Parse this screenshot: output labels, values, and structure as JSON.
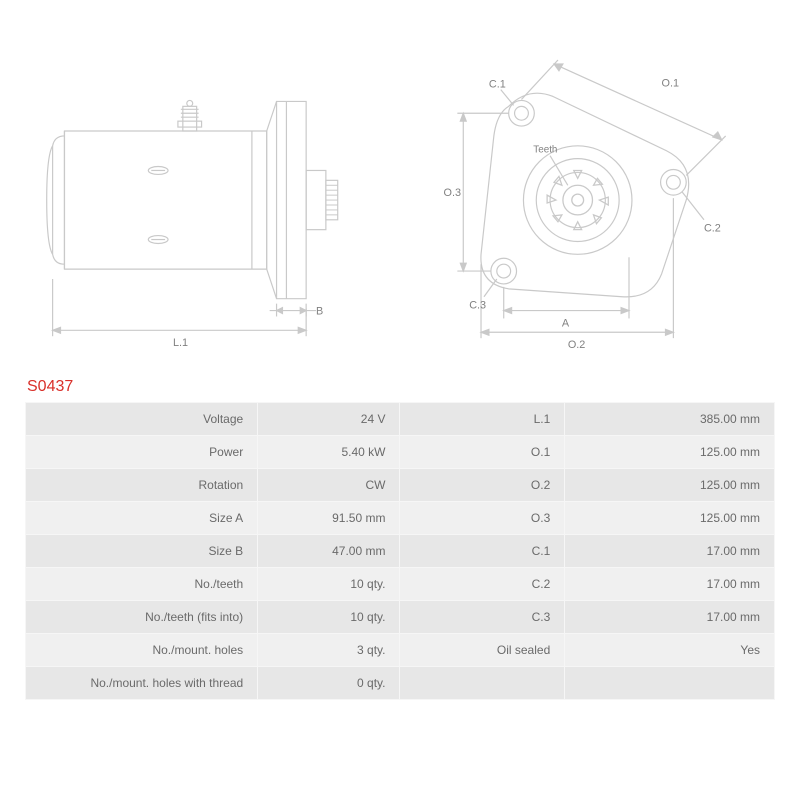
{
  "part_number": "S0437",
  "diagram": {
    "stroke_color": "#c9c9c9",
    "stroke_width": 1.2,
    "text_color": "#808080",
    "label_fontsize": 11,
    "side_view": {
      "labels": {
        "L1": "L.1",
        "B": "B"
      }
    },
    "front_view": {
      "labels": {
        "O1": "O.1",
        "O2": "O.2",
        "O3": "O.3",
        "C1": "C.1",
        "C2": "C.2",
        "C3": "C.3",
        "A": "A",
        "Teeth": "Teeth"
      }
    }
  },
  "specs": {
    "colors": {
      "row_odd_bg": "#e7e7e7",
      "row_even_bg": "#f0f0f0",
      "text": "#6a6a6a"
    },
    "rows": [
      {
        "l": "Voltage",
        "v": "24 V",
        "l2": "L.1",
        "v2": "385.00 mm"
      },
      {
        "l": "Power",
        "v": "5.40 kW",
        "l2": "O.1",
        "v2": "125.00 mm"
      },
      {
        "l": "Rotation",
        "v": "CW",
        "l2": "O.2",
        "v2": "125.00 mm"
      },
      {
        "l": "Size A",
        "v": "91.50 mm",
        "l2": "O.3",
        "v2": "125.00 mm"
      },
      {
        "l": "Size B",
        "v": "47.00 mm",
        "l2": "C.1",
        "v2": "17.00 mm"
      },
      {
        "l": "No./teeth",
        "v": "10 qty.",
        "l2": "C.2",
        "v2": "17.00 mm"
      },
      {
        "l": "No./teeth (fits into)",
        "v": "10 qty.",
        "l2": "C.3",
        "v2": "17.00 mm"
      },
      {
        "l": "No./mount. holes",
        "v": "3 qty.",
        "l2": "Oil sealed",
        "v2": "Yes"
      },
      {
        "l": "No./mount. holes with thread",
        "v": "0 qty.",
        "l2": "",
        "v2": ""
      }
    ]
  }
}
